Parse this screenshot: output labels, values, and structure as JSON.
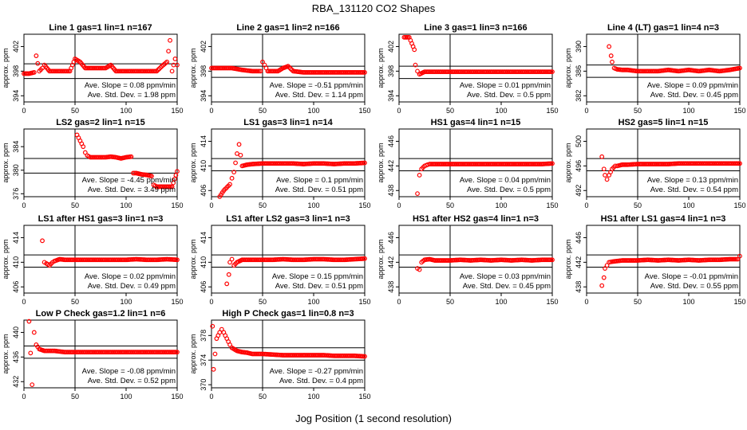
{
  "figure": {
    "title": "RBA_131120  CO2 Shapes",
    "xlabel": "Jog Position (1 second resolution)",
    "ylabel": "approx. ppm",
    "slope_prefix": "Ave. Slope = ",
    "slope_unit": " ppm/min",
    "std_prefix": "Ave. Std. Dev. = ",
    "std_unit": " ppm",
    "marker_color": "#ff0000"
  },
  "chart_data": [
    {
      "type": "scatter",
      "title": "Line 1 gas=1 lin=1 n=167",
      "xlim": [
        0,
        150
      ],
      "xticks": [
        0,
        50,
        100,
        150
      ],
      "ylim": [
        393,
        404
      ],
      "yticks": [
        394,
        398,
        402
      ],
      "hlines": [
        399.2,
        396.8
      ],
      "vline": 50,
      "slope": "0.08",
      "std": "1.98",
      "x": [
        0,
        5,
        10,
        12,
        15,
        18,
        20,
        25,
        30,
        35,
        40,
        45,
        50,
        55,
        60,
        65,
        70,
        75,
        80,
        85,
        90,
        100,
        110,
        120,
        130,
        135,
        140,
        143,
        145,
        148,
        150
      ],
      "y": [
        397.6,
        397.6,
        397.8,
        400.5,
        398,
        398.5,
        399,
        398,
        398,
        398,
        398,
        398,
        400,
        399.5,
        398.5,
        398.5,
        398.5,
        398.5,
        398.5,
        399,
        398,
        398,
        398,
        398,
        398,
        398.8,
        399.5,
        403,
        398,
        400,
        399
      ]
    },
    {
      "type": "scatter",
      "title": "Line 2 gas=1 lin=2 n=166",
      "xlim": [
        0,
        150
      ],
      "xticks": [
        0,
        50,
        100,
        150
      ],
      "ylim": [
        393,
        404
      ],
      "yticks": [
        394,
        398,
        402
      ],
      "hlines": [
        398.8,
        397
      ],
      "vline": 50,
      "slope": "-0.51",
      "std": "1.14",
      "x": [
        0,
        5,
        10,
        20,
        30,
        40,
        48,
        50,
        52,
        55,
        60,
        65,
        70,
        75,
        80,
        90,
        100,
        110,
        120,
        130,
        140,
        150
      ],
      "y": [
        398.5,
        398.5,
        398.5,
        398.5,
        398.2,
        398,
        398,
        399.5,
        399,
        398,
        398,
        398,
        398.5,
        398.8,
        398,
        397.8,
        397.8,
        397.8,
        397.8,
        397.8,
        397.8,
        397.8
      ]
    },
    {
      "type": "scatter",
      "title": "Line 3 gas=1 lin=3 n=166",
      "xlim": [
        0,
        150
      ],
      "xticks": [
        0,
        50,
        100,
        150
      ],
      "ylim": [
        393,
        404
      ],
      "yticks": [
        394,
        398,
        402
      ],
      "hlines": [
        398.8,
        396.8
      ],
      "vline": 50,
      "slope": "0.01",
      "std": "0.5",
      "x": [
        5,
        10,
        15,
        16,
        18,
        20,
        25,
        30,
        40,
        50,
        60,
        70,
        80,
        90,
        100,
        110,
        120,
        130,
        140,
        150
      ],
      "y": [
        403.5,
        403.5,
        401.5,
        399,
        398,
        397.5,
        397.9,
        397.9,
        397.9,
        397.9,
        397.9,
        397.9,
        397.9,
        397.9,
        397.9,
        397.9,
        397.9,
        397.9,
        397.9,
        397.9
      ]
    },
    {
      "type": "scatter",
      "title": "Line 4 (LT) gas=1 lin=4 n=3",
      "xlim": [
        0,
        150
      ],
      "xticks": [
        0,
        50,
        100,
        150
      ],
      "ylim": [
        381,
        392
      ],
      "yticks": [
        382,
        386,
        390
      ],
      "hlines": [
        387,
        385
      ],
      "vline": 50,
      "slope": "0.09",
      "std": "0.45",
      "x": [
        22,
        24,
        25,
        27,
        30,
        35,
        40,
        50,
        60,
        70,
        80,
        90,
        100,
        110,
        120,
        130,
        140,
        150
      ],
      "y": [
        390,
        388.5,
        387.5,
        386.5,
        386.3,
        386.2,
        386.2,
        386,
        386,
        386,
        386.2,
        386,
        386.2,
        386,
        386.2,
        386,
        386.2,
        386.5
      ]
    },
    {
      "type": "scatter",
      "title": "LS2 gas=2 lin=1 n=15",
      "xlim": [
        0,
        150
      ],
      "xticks": [
        0,
        50,
        100,
        150
      ],
      "ylim": [
        375.5,
        387
      ],
      "yticks": [
        376,
        380,
        384
      ],
      "hlines": [
        382,
        379.5
      ],
      "vline": 50,
      "slope": "-4.45",
      "std": "3.49",
      "x": [
        52,
        55,
        58,
        60,
        62,
        65,
        70,
        75,
        80,
        85,
        90,
        95,
        100,
        105,
        107,
        110,
        115,
        120,
        125,
        127,
        130,
        135,
        140,
        145,
        150
      ],
      "y": [
        386,
        385,
        384,
        383,
        382.5,
        382.2,
        382.2,
        382.2,
        382.2,
        382.3,
        382.2,
        382,
        382.2,
        382.3,
        379.5,
        379.5,
        379.3,
        379.2,
        379,
        377.5,
        377.2,
        377.2,
        377.2,
        377.2,
        379.8
      ]
    },
    {
      "type": "scatter",
      "title": "LS1 gas=3 lin=1 n=14",
      "xlim": [
        0,
        150
      ],
      "xticks": [
        0,
        50,
        100,
        150
      ],
      "ylim": [
        405,
        416
      ],
      "yticks": [
        406,
        410,
        414
      ],
      "hlines": [
        411.2,
        409.2
      ],
      "vline": 50,
      "slope": "0.1",
      "std": "0.51",
      "x": [
        8,
        12,
        15,
        18,
        20,
        22,
        25,
        27,
        30,
        35,
        40,
        50,
        60,
        70,
        80,
        90,
        100,
        110,
        120,
        130,
        140,
        150
      ],
      "y": [
        405,
        406,
        406.5,
        407,
        408,
        409,
        412,
        413.5,
        410,
        410.2,
        410.3,
        410.4,
        410.4,
        410.4,
        410.4,
        410.3,
        410.4,
        410.4,
        410.3,
        410.4,
        410.4,
        410.5
      ]
    },
    {
      "type": "scatter",
      "title": "HS1 gas=4 lin=1 n=15",
      "xlim": [
        0,
        150
      ],
      "xticks": [
        0,
        50,
        100,
        150
      ],
      "ylim": [
        437,
        448
      ],
      "yticks": [
        438,
        442,
        446
      ],
      "hlines": [
        443.2,
        441.2
      ],
      "vline": 50,
      "slope": "0.04",
      "std": "0.5",
      "x": [
        18,
        20,
        22,
        25,
        28,
        30,
        35,
        40,
        50,
        60,
        70,
        80,
        90,
        100,
        110,
        120,
        130,
        140,
        150
      ],
      "y": [
        437.5,
        440.5,
        441.5,
        442,
        442.2,
        442.3,
        442.3,
        442.3,
        442.3,
        442.3,
        442.3,
        442.3,
        442.3,
        442.3,
        442.3,
        442.3,
        442.3,
        442.3,
        442.4
      ]
    },
    {
      "type": "scatter",
      "title": "HS2 gas=5 lin=1 n=15",
      "xlim": [
        0,
        150
      ],
      "xticks": [
        0,
        50,
        100,
        150
      ],
      "ylim": [
        491,
        502
      ],
      "yticks": [
        492,
        496,
        500
      ],
      "hlines": [
        497.2,
        495.2
      ],
      "vline": 50,
      "slope": "0.13",
      "std": "0.54",
      "x": [
        15,
        17,
        18,
        20,
        22,
        25,
        28,
        30,
        35,
        40,
        50,
        60,
        70,
        80,
        90,
        100,
        110,
        120,
        130,
        140,
        150
      ],
      "y": [
        497.5,
        495.5,
        494.5,
        493.8,
        494.5,
        495.5,
        496,
        496,
        496.2,
        496.2,
        496.3,
        496.3,
        496.3,
        496.3,
        496.4,
        496.4,
        496.4,
        496.4,
        496.4,
        496.4,
        496.4
      ]
    },
    {
      "type": "scatter",
      "title": "LS1 after HS1 gas=3 lin=1 n=3",
      "xlim": [
        0,
        150
      ],
      "xticks": [
        0,
        50,
        100,
        150
      ],
      "ylim": [
        405,
        416
      ],
      "yticks": [
        406,
        410,
        414
      ],
      "hlines": [
        411.2,
        409.2
      ],
      "vline": 50,
      "slope": "0.02",
      "std": "0.49",
      "x": [
        18,
        20,
        22,
        25,
        28,
        30,
        35,
        40,
        50,
        60,
        70,
        80,
        90,
        100,
        110,
        120,
        130,
        140,
        150
      ],
      "y": [
        413.5,
        410,
        409.8,
        409.5,
        410,
        410.2,
        410.5,
        410.4,
        410.4,
        410.4,
        410.4,
        410.4,
        410.4,
        410.4,
        410.5,
        410.4,
        410.4,
        410.5,
        410.4
      ]
    },
    {
      "type": "scatter",
      "title": "LS1 after LS2 gas=3 lin=1 n=3",
      "xlim": [
        0,
        150
      ],
      "xticks": [
        0,
        50,
        100,
        150
      ],
      "ylim": [
        405,
        416
      ],
      "yticks": [
        406,
        410,
        414
      ],
      "hlines": [
        411.2,
        409.2
      ],
      "vline": 50,
      "slope": "0.15",
      "std": "0.51",
      "x": [
        15,
        17,
        18,
        20,
        22,
        25,
        30,
        35,
        40,
        50,
        60,
        70,
        80,
        90,
        100,
        110,
        120,
        130,
        140,
        150
      ],
      "y": [
        406.5,
        408,
        410,
        410.5,
        409.5,
        410,
        410.4,
        410.4,
        410.4,
        410.4,
        410.4,
        410.5,
        410.4,
        410.4,
        410.5,
        410.5,
        410.4,
        410.4,
        410.5,
        410.6
      ]
    },
    {
      "type": "scatter",
      "title": "HS1 after HS2 gas=4 lin=1 n=3",
      "xlim": [
        0,
        150
      ],
      "xticks": [
        0,
        50,
        100,
        150
      ],
      "ylim": [
        437,
        448
      ],
      "yticks": [
        438,
        442,
        446
      ],
      "hlines": [
        443.2,
        441.2
      ],
      "vline": 50,
      "slope": "0.03",
      "std": "0.45",
      "x": [
        18,
        20,
        22,
        25,
        30,
        35,
        40,
        50,
        60,
        70,
        80,
        90,
        100,
        110,
        120,
        130,
        140,
        150
      ],
      "y": [
        441,
        440.8,
        442,
        442.4,
        442.5,
        442.3,
        442.3,
        442.3,
        442.4,
        442.3,
        442.4,
        442.3,
        442.4,
        442.3,
        442.4,
        442.3,
        442.4,
        442.4
      ]
    },
    {
      "type": "scatter",
      "title": "HS1 after LS1 gas=4 lin=1 n=3",
      "xlim": [
        0,
        150
      ],
      "xticks": [
        0,
        50,
        100,
        150
      ],
      "ylim": [
        437,
        448
      ],
      "yticks": [
        438,
        442,
        446
      ],
      "hlines": [
        443.2,
        441.2
      ],
      "vline": 50,
      "slope": "-0.01",
      "std": "0.55",
      "x": [
        15,
        17,
        18,
        20,
        22,
        25,
        30,
        35,
        40,
        50,
        60,
        70,
        80,
        90,
        100,
        110,
        120,
        130,
        140,
        148,
        150
      ],
      "y": [
        438.2,
        439.5,
        441,
        441.5,
        442,
        442.1,
        442.2,
        442.3,
        442.3,
        442.3,
        442.4,
        442.3,
        442.4,
        442.3,
        442.4,
        442.3,
        442.4,
        442.4,
        442.5,
        442.5,
        443
      ]
    },
    {
      "type": "scatter",
      "title": "Low P Check gas=1.2 lin=1 n=6",
      "xlim": [
        0,
        150
      ],
      "xticks": [
        0,
        50,
        100,
        150
      ],
      "ylim": [
        431,
        442
      ],
      "yticks": [
        432,
        436,
        440
      ],
      "hlines": [
        437.8,
        435.8
      ],
      "vline": 50,
      "slope": "-0.08",
      "std": "0.52",
      "x": [
        5,
        8,
        10,
        12,
        15,
        20,
        25,
        30,
        40,
        50,
        60,
        70,
        80,
        90,
        100,
        110,
        120,
        130,
        140,
        150
      ],
      "y": [
        441.8,
        431.5,
        440,
        438,
        437.3,
        437,
        437,
        437,
        436.8,
        436.8,
        436.8,
        436.8,
        436.8,
        436.8,
        436.8,
        436.8,
        436.8,
        436.8,
        436.8,
        436.8
      ]
    },
    {
      "type": "scatter",
      "title": "High P Check gas=1 lin=0.8 n=3",
      "xlim": [
        0,
        150
      ],
      "xticks": [
        0,
        50,
        100,
        150
      ],
      "ylim": [
        369.5,
        380.5
      ],
      "yticks": [
        370,
        374,
        378
      ],
      "hlines": [
        376,
        374
      ],
      "vline": 50,
      "slope": "-0.27",
      "std": "0.4",
      "x": [
        1,
        2,
        5,
        8,
        10,
        12,
        15,
        18,
        20,
        25,
        30,
        35,
        40,
        50,
        60,
        70,
        80,
        90,
        100,
        110,
        120,
        130,
        140,
        150
      ],
      "y": [
        379.5,
        372.5,
        377.5,
        378.5,
        379,
        378.5,
        377.5,
        376.5,
        376,
        375.5,
        375.3,
        375.2,
        375,
        375,
        374.9,
        374.8,
        374.8,
        374.8,
        374.8,
        374.8,
        374.7,
        374.7,
        374.7,
        374.6
      ]
    }
  ]
}
